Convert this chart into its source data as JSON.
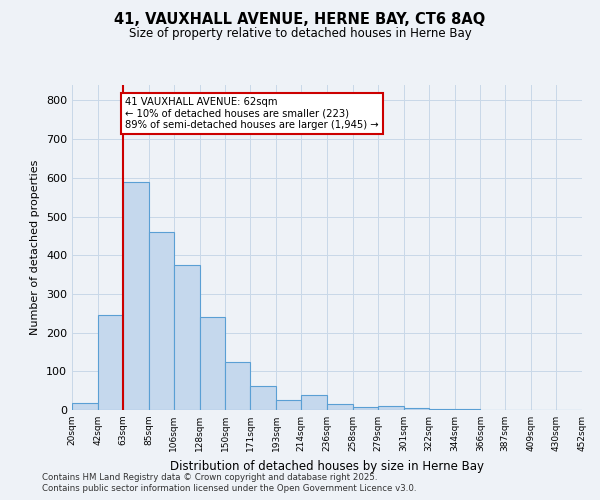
{
  "title_line1": "41, VAUXHALL AVENUE, HERNE BAY, CT6 8AQ",
  "title_line2": "Size of property relative to detached houses in Herne Bay",
  "xlabel": "Distribution of detached houses by size in Herne Bay",
  "ylabel": "Number of detached properties",
  "bar_edges": [
    20,
    42,
    63,
    85,
    106,
    128,
    150,
    171,
    193,
    214,
    236,
    258,
    279,
    301,
    322,
    344,
    366,
    387,
    409,
    430,
    452
  ],
  "bar_heights": [
    18,
    245,
    590,
    460,
    375,
    240,
    125,
    62,
    25,
    38,
    15,
    8,
    10,
    5,
    3,
    2,
    1,
    1,
    1,
    1
  ],
  "bar_color": "#c5d8ed",
  "bar_edge_color": "#5a9fd4",
  "grid_color": "#c8d8e8",
  "background_color": "#eef2f7",
  "red_line_x": 63,
  "annotation_text": "41 VAUXHALL AVENUE: 62sqm\n← 10% of detached houses are smaller (223)\n89% of semi-detached houses are larger (1,945) →",
  "annotation_box_color": "#ffffff",
  "annotation_border_color": "#cc0000",
  "ylim": [
    0,
    840
  ],
  "yticks": [
    0,
    100,
    200,
    300,
    400,
    500,
    600,
    700,
    800
  ],
  "footnote_line1": "Contains HM Land Registry data © Crown copyright and database right 2025.",
  "footnote_line2": "Contains public sector information licensed under the Open Government Licence v3.0."
}
